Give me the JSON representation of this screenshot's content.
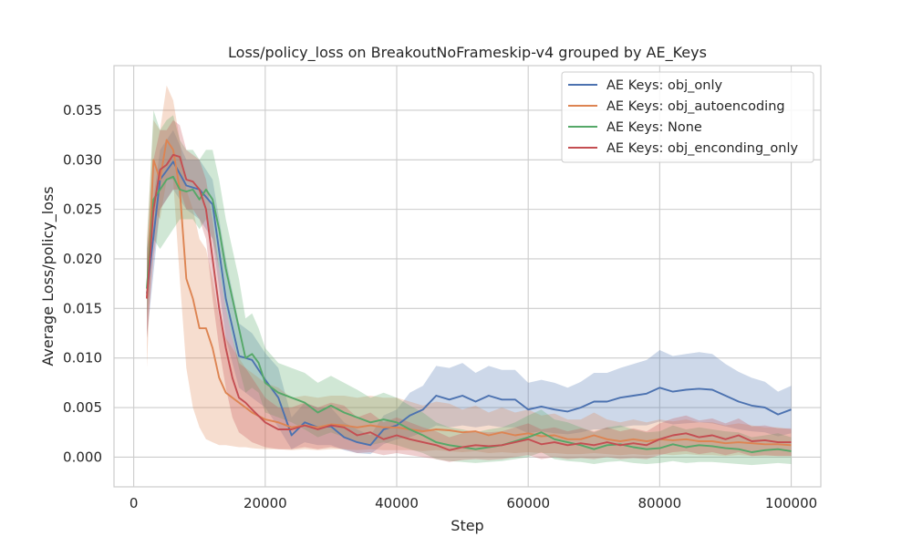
{
  "chart_data": {
    "type": "line",
    "title": "Loss/policy_loss on BreakoutNoFrameskip-v4 grouped by AE_Keys",
    "xlabel": "Step",
    "ylabel": "Average Loss/policy_loss",
    "xlim": [
      -3000,
      104500
    ],
    "ylim": [
      -0.003,
      0.0395
    ],
    "xticks": [
      0,
      20000,
      40000,
      60000,
      80000,
      100000
    ],
    "xtick_labels": [
      "0",
      "20000",
      "40000",
      "60000",
      "80000",
      "100000"
    ],
    "yticks": [
      0.0,
      0.005,
      0.01,
      0.015,
      0.02,
      0.025,
      0.03,
      0.035
    ],
    "ytick_labels": [
      "0.000",
      "0.005",
      "0.010",
      "0.015",
      "0.020",
      "0.025",
      "0.030",
      "0.035"
    ],
    "grid": true,
    "legend_position": "top-right",
    "series": [
      {
        "name": "AE Keys: obj_only",
        "color": "#4c72b0",
        "x": [
          2000,
          4000,
          6000,
          8000,
          10000,
          12000,
          14000,
          16000,
          18000,
          20000,
          22000,
          24000,
          26000,
          28000,
          30000,
          32000,
          34000,
          36000,
          38000,
          40000,
          42000,
          44000,
          46000,
          48000,
          50000,
          52000,
          54000,
          56000,
          58000,
          60000,
          62000,
          64000,
          66000,
          68000,
          70000,
          72000,
          74000,
          76000,
          78000,
          80000,
          82000,
          84000,
          86000,
          88000,
          90000,
          92000,
          94000,
          96000,
          98000,
          100000
        ],
        "y": [
          0.0165,
          0.028,
          0.0298,
          0.0274,
          0.027,
          0.0255,
          0.016,
          0.0102,
          0.0098,
          0.0078,
          0.006,
          0.0022,
          0.0035,
          0.003,
          0.0031,
          0.002,
          0.0015,
          0.0012,
          0.0028,
          0.0032,
          0.0042,
          0.0048,
          0.0062,
          0.0058,
          0.0062,
          0.0056,
          0.0062,
          0.0058,
          0.0058,
          0.0048,
          0.0051,
          0.0048,
          0.0046,
          0.005,
          0.0056,
          0.0056,
          0.006,
          0.0062,
          0.0064,
          0.007,
          0.0066,
          0.0068,
          0.0069,
          0.0068,
          0.0062,
          0.0056,
          0.0052,
          0.005,
          0.0043,
          0.0048
        ],
        "lower": [
          0.012,
          0.025,
          0.027,
          0.025,
          0.024,
          0.022,
          0.012,
          0.007,
          0.006,
          0.005,
          0.003,
          0.0008,
          0.0015,
          0.0012,
          0.0012,
          0.0007,
          0.0004,
          0.0003,
          0.0013,
          0.0018,
          0.002,
          0.0025,
          0.0032,
          0.003,
          0.0032,
          0.003,
          0.0032,
          0.003,
          0.003,
          0.0024,
          0.0026,
          0.0024,
          0.0023,
          0.0025,
          0.0028,
          0.0028,
          0.003,
          0.0032,
          0.0032,
          0.0036,
          0.0033,
          0.0034,
          0.0035,
          0.0034,
          0.0031,
          0.0028,
          0.0026,
          0.0025,
          0.0021,
          0.0024
        ],
        "upper": [
          0.021,
          0.031,
          0.033,
          0.03,
          0.03,
          0.028,
          0.02,
          0.0135,
          0.0125,
          0.0105,
          0.009,
          0.004,
          0.0055,
          0.005,
          0.005,
          0.0035,
          0.0028,
          0.0022,
          0.0042,
          0.0048,
          0.0065,
          0.0072,
          0.0092,
          0.009,
          0.0095,
          0.0085,
          0.0092,
          0.0088,
          0.0088,
          0.0075,
          0.0078,
          0.0075,
          0.007,
          0.0076,
          0.0085,
          0.0085,
          0.009,
          0.0094,
          0.0098,
          0.0108,
          0.0102,
          0.0104,
          0.0106,
          0.0104,
          0.0094,
          0.0086,
          0.008,
          0.0076,
          0.0066,
          0.0072
        ]
      },
      {
        "name": "AE Keys: obj_autoencoding",
        "color": "#dd8452",
        "x": [
          2000,
          3000,
          4000,
          5000,
          6000,
          7000,
          8000,
          9000,
          10000,
          11000,
          12000,
          13000,
          14000,
          15000,
          16000,
          17000,
          18000,
          20000,
          22000,
          24000,
          26000,
          28000,
          30000,
          32000,
          34000,
          36000,
          38000,
          40000,
          42000,
          44000,
          46000,
          48000,
          50000,
          52000,
          54000,
          56000,
          58000,
          60000,
          62000,
          64000,
          66000,
          68000,
          70000,
          72000,
          74000,
          76000,
          78000,
          80000,
          82000,
          84000,
          86000,
          88000,
          90000,
          92000,
          94000,
          96000,
          98000,
          100000
        ],
        "y": [
          0.016,
          0.03,
          0.028,
          0.032,
          0.031,
          0.027,
          0.018,
          0.016,
          0.013,
          0.013,
          0.011,
          0.008,
          0.0065,
          0.006,
          0.0055,
          0.005,
          0.0045,
          0.0038,
          0.0035,
          0.003,
          0.0032,
          0.003,
          0.0033,
          0.0032,
          0.003,
          0.0032,
          0.003,
          0.003,
          0.0028,
          0.0026,
          0.0028,
          0.0027,
          0.0025,
          0.0026,
          0.0022,
          0.0025,
          0.0022,
          0.0024,
          0.0021,
          0.0022,
          0.0018,
          0.0018,
          0.0022,
          0.0018,
          0.0016,
          0.0018,
          0.0016,
          0.0018,
          0.0017,
          0.0018,
          0.0016,
          0.0016,
          0.0014,
          0.0015,
          0.0014,
          0.0013,
          0.0013,
          0.0012
        ],
        "lower": [
          0.009,
          0.025,
          0.024,
          0.028,
          0.028,
          0.018,
          0.009,
          0.005,
          0.003,
          0.0018,
          0.0015,
          0.0012,
          0.0012,
          0.0011,
          0.001,
          0.001,
          0.0009,
          0.0008,
          0.0008,
          0.0007,
          0.0008,
          0.0007,
          0.0008,
          0.0008,
          0.0007,
          0.0008,
          0.0007,
          0.0007,
          0.0007,
          0.0006,
          0.0007,
          0.0006,
          0.0005,
          0.0006,
          0.0004,
          0.0005,
          0.0004,
          0.0005,
          0.0004,
          0.0004,
          0.0003,
          0.0003,
          0.0004,
          0.0003,
          0.0002,
          0.0003,
          0.0002,
          0.0003,
          0.0002,
          0.0003,
          0.0002,
          0.0002,
          0.0001,
          0.0002,
          0.0001,
          0.0001,
          0.0001,
          0.0001
        ],
        "upper": [
          0.022,
          0.034,
          0.033,
          0.0375,
          0.036,
          0.032,
          0.027,
          0.025,
          0.022,
          0.021,
          0.018,
          0.014,
          0.012,
          0.011,
          0.01,
          0.009,
          0.0085,
          0.0075,
          0.007,
          0.006,
          0.0062,
          0.006,
          0.0062,
          0.0062,
          0.006,
          0.0062,
          0.006,
          0.006,
          0.0056,
          0.0052,
          0.0056,
          0.0054,
          0.0048,
          0.0052,
          0.0045,
          0.005,
          0.0045,
          0.0048,
          0.0042,
          0.0044,
          0.0038,
          0.0038,
          0.0045,
          0.0038,
          0.0035,
          0.0038,
          0.0035,
          0.0038,
          0.0036,
          0.0038,
          0.0035,
          0.0035,
          0.0032,
          0.0034,
          0.0032,
          0.003,
          0.003,
          0.0028
        ]
      },
      {
        "name": "AE Keys: None",
        "color": "#55a868",
        "x": [
          2000,
          3000,
          4000,
          5000,
          6000,
          7000,
          8000,
          9000,
          10000,
          11000,
          12000,
          13000,
          14000,
          15000,
          16000,
          17000,
          18000,
          19000,
          20000,
          22000,
          24000,
          26000,
          28000,
          30000,
          32000,
          34000,
          36000,
          38000,
          40000,
          42000,
          44000,
          46000,
          48000,
          50000,
          52000,
          54000,
          56000,
          58000,
          60000,
          62000,
          64000,
          66000,
          68000,
          70000,
          72000,
          74000,
          76000,
          78000,
          80000,
          82000,
          84000,
          86000,
          88000,
          90000,
          92000,
          94000,
          96000,
          98000,
          100000
        ],
        "y": [
          0.017,
          0.026,
          0.027,
          0.028,
          0.0283,
          0.027,
          0.0268,
          0.027,
          0.026,
          0.027,
          0.026,
          0.023,
          0.019,
          0.016,
          0.013,
          0.01,
          0.0104,
          0.0095,
          0.0075,
          0.0065,
          0.006,
          0.0055,
          0.0045,
          0.0052,
          0.0045,
          0.004,
          0.0035,
          0.0038,
          0.0035,
          0.0028,
          0.0022,
          0.0015,
          0.0012,
          0.001,
          0.0008,
          0.001,
          0.0012,
          0.0016,
          0.002,
          0.0025,
          0.0018,
          0.0015,
          0.0012,
          0.0008,
          0.0012,
          0.0013,
          0.001,
          0.0008,
          0.0009,
          0.0013,
          0.001,
          0.0012,
          0.0011,
          0.0009,
          0.0008,
          0.0005,
          0.0007,
          0.0008,
          0.0006
        ],
        "lower": [
          0.014,
          0.022,
          0.021,
          0.022,
          0.023,
          0.024,
          0.024,
          0.024,
          0.023,
          0.024,
          0.022,
          0.019,
          0.015,
          0.012,
          0.009,
          0.0065,
          0.007,
          0.0065,
          0.0045,
          0.004,
          0.0035,
          0.0028,
          0.002,
          0.0025,
          0.002,
          0.0015,
          0.0012,
          0.0015,
          0.0012,
          0.0008,
          0.0004,
          -0.0002,
          -0.0004,
          -0.0005,
          -0.0006,
          -0.0005,
          -0.0004,
          -0.0002,
          0.0,
          0.0005,
          -0.0002,
          -0.0004,
          -0.0005,
          -0.0007,
          -0.0005,
          -0.0004,
          -0.0006,
          -0.0007,
          -0.0006,
          -0.0004,
          -0.0006,
          -0.0005,
          -0.0005,
          -0.0006,
          -0.0007,
          -0.0008,
          -0.0007,
          -0.0006,
          -0.0007
        ],
        "upper": [
          0.021,
          0.035,
          0.033,
          0.034,
          0.0345,
          0.032,
          0.031,
          0.031,
          0.03,
          0.031,
          0.031,
          0.028,
          0.024,
          0.021,
          0.018,
          0.014,
          0.0145,
          0.013,
          0.011,
          0.0095,
          0.009,
          0.0085,
          0.0075,
          0.0082,
          0.0075,
          0.0068,
          0.006,
          0.0065,
          0.006,
          0.0052,
          0.0045,
          0.0035,
          0.003,
          0.0028,
          0.0025,
          0.0028,
          0.003,
          0.0035,
          0.0042,
          0.0048,
          0.0038,
          0.0035,
          0.003,
          0.0025,
          0.003,
          0.0032,
          0.0028,
          0.0025,
          0.0026,
          0.0032,
          0.0028,
          0.003,
          0.0028,
          0.0026,
          0.0025,
          0.002,
          0.0022,
          0.0024,
          0.002
        ]
      },
      {
        "name": "AE Keys: obj_enconding_only",
        "color": "#c44e52",
        "x": [
          2000,
          3000,
          4000,
          5000,
          6000,
          7000,
          8000,
          9000,
          10000,
          11000,
          12000,
          13000,
          14000,
          15000,
          16000,
          17000,
          18000,
          20000,
          22000,
          24000,
          26000,
          28000,
          30000,
          32000,
          34000,
          36000,
          38000,
          40000,
          42000,
          44000,
          46000,
          48000,
          50000,
          52000,
          54000,
          56000,
          58000,
          60000,
          62000,
          64000,
          66000,
          68000,
          70000,
          72000,
          74000,
          76000,
          78000,
          80000,
          82000,
          84000,
          86000,
          88000,
          90000,
          92000,
          94000,
          96000,
          98000,
          100000
        ],
        "y": [
          0.016,
          0.025,
          0.029,
          0.0295,
          0.0305,
          0.0303,
          0.028,
          0.0278,
          0.027,
          0.025,
          0.02,
          0.015,
          0.011,
          0.008,
          0.006,
          0.0055,
          0.0048,
          0.0035,
          0.0028,
          0.0028,
          0.0032,
          0.0028,
          0.0032,
          0.003,
          0.0022,
          0.0025,
          0.0018,
          0.0022,
          0.0018,
          0.0015,
          0.0012,
          0.0007,
          0.001,
          0.0012,
          0.0011,
          0.0012,
          0.0015,
          0.0018,
          0.0013,
          0.0015,
          0.0012,
          0.0014,
          0.0012,
          0.0015,
          0.0012,
          0.0014,
          0.0012,
          0.0018,
          0.0022,
          0.0024,
          0.002,
          0.0022,
          0.0018,
          0.0022,
          0.0016,
          0.0017,
          0.0015,
          0.0015
        ],
        "lower": [
          0.012,
          0.02,
          0.025,
          0.026,
          0.027,
          0.027,
          0.025,
          0.025,
          0.024,
          0.022,
          0.016,
          0.011,
          0.007,
          0.004,
          0.0025,
          0.002,
          0.0015,
          0.001,
          0.0008,
          0.0008,
          0.001,
          0.0008,
          0.001,
          0.0008,
          0.0004,
          0.0005,
          0.0002,
          0.0004,
          0.0002,
          0.0,
          -0.0002,
          -0.0005,
          -0.0003,
          -0.0002,
          -0.0003,
          -0.0002,
          0.0,
          0.0002,
          -0.0002,
          0.0,
          -0.0002,
          -0.0001,
          -0.0002,
          0.0,
          -0.0002,
          -0.0001,
          -0.0002,
          0.0002,
          0.0005,
          0.0006,
          0.0003,
          0.0005,
          0.0002,
          0.0005,
          0.0001,
          0.0002,
          0.0001,
          0.0001
        ],
        "upper": [
          0.02,
          0.03,
          0.033,
          0.033,
          0.034,
          0.0335,
          0.031,
          0.0305,
          0.03,
          0.028,
          0.024,
          0.019,
          0.015,
          0.012,
          0.0095,
          0.009,
          0.008,
          0.006,
          0.005,
          0.005,
          0.0055,
          0.005,
          0.0055,
          0.0052,
          0.004,
          0.0045,
          0.0035,
          0.004,
          0.0035,
          0.003,
          0.0026,
          0.002,
          0.0024,
          0.0026,
          0.0025,
          0.0026,
          0.003,
          0.0034,
          0.0028,
          0.003,
          0.0026,
          0.0029,
          0.0026,
          0.003,
          0.0026,
          0.0029,
          0.0026,
          0.0034,
          0.0039,
          0.0042,
          0.0037,
          0.0039,
          0.0034,
          0.0039,
          0.0031,
          0.0032,
          0.0029,
          0.0029
        ]
      }
    ]
  }
}
